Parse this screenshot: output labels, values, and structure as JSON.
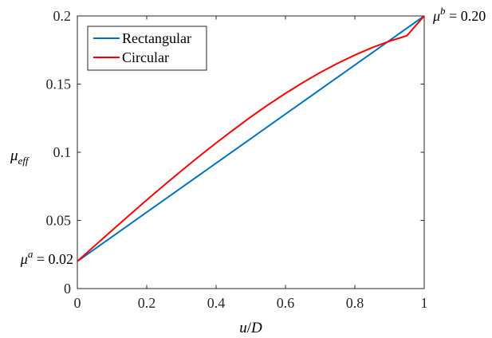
{
  "chart_data": {
    "type": "line",
    "xlabel": {
      "var": "u",
      "sep": "/",
      "den": "D"
    },
    "ylabel": {
      "base": "μ",
      "sub": "eff"
    },
    "xlim": [
      0,
      1
    ],
    "ylim": [
      0,
      0.2
    ],
    "xticks": [
      0,
      0.2,
      0.4,
      0.6,
      0.8,
      1
    ],
    "xtick_labels": [
      "0",
      "0.2",
      "0.4",
      "0.6",
      "0.8",
      "1"
    ],
    "yticks": [
      0,
      0.05,
      0.1,
      0.15,
      0.2
    ],
    "ytick_labels": [
      "0",
      "0.05",
      "0.1",
      "0.15",
      "0.2"
    ],
    "grid": false,
    "legend_position": "top-left",
    "series": [
      {
        "name": "Rectangular",
        "color": "#0072BD",
        "x": [
          0,
          0.1,
          0.2,
          0.3,
          0.4,
          0.5,
          0.6,
          0.7,
          0.8,
          0.9,
          1.0
        ],
        "y": [
          0.02,
          0.038,
          0.056,
          0.074,
          0.092,
          0.11,
          0.128,
          0.146,
          0.164,
          0.182,
          0.2
        ]
      },
      {
        "name": "Circular",
        "color": "#FF0000",
        "x": [
          0,
          0.05,
          0.1,
          0.15,
          0.2,
          0.25,
          0.3,
          0.35,
          0.4,
          0.45,
          0.5,
          0.55,
          0.6,
          0.65,
          0.7,
          0.75,
          0.8,
          0.85,
          0.9,
          0.95,
          1.0
        ],
        "y": [
          0.02,
          0.0314,
          0.0427,
          0.0539,
          0.065,
          0.0758,
          0.0864,
          0.0968,
          0.1068,
          0.1165,
          0.1259,
          0.1348,
          0.1432,
          0.1511,
          0.1585,
          0.1652,
          0.1713,
          0.1768,
          0.1815,
          0.1855,
          0.2
        ]
      }
    ],
    "annotations": [
      {
        "id": "mu-a",
        "sym": "μ",
        "sup": "a",
        "text": " = 0.02"
      },
      {
        "id": "mu-b",
        "sym": "μ",
        "sup": "b",
        "text": " = 0.20"
      }
    ]
  }
}
